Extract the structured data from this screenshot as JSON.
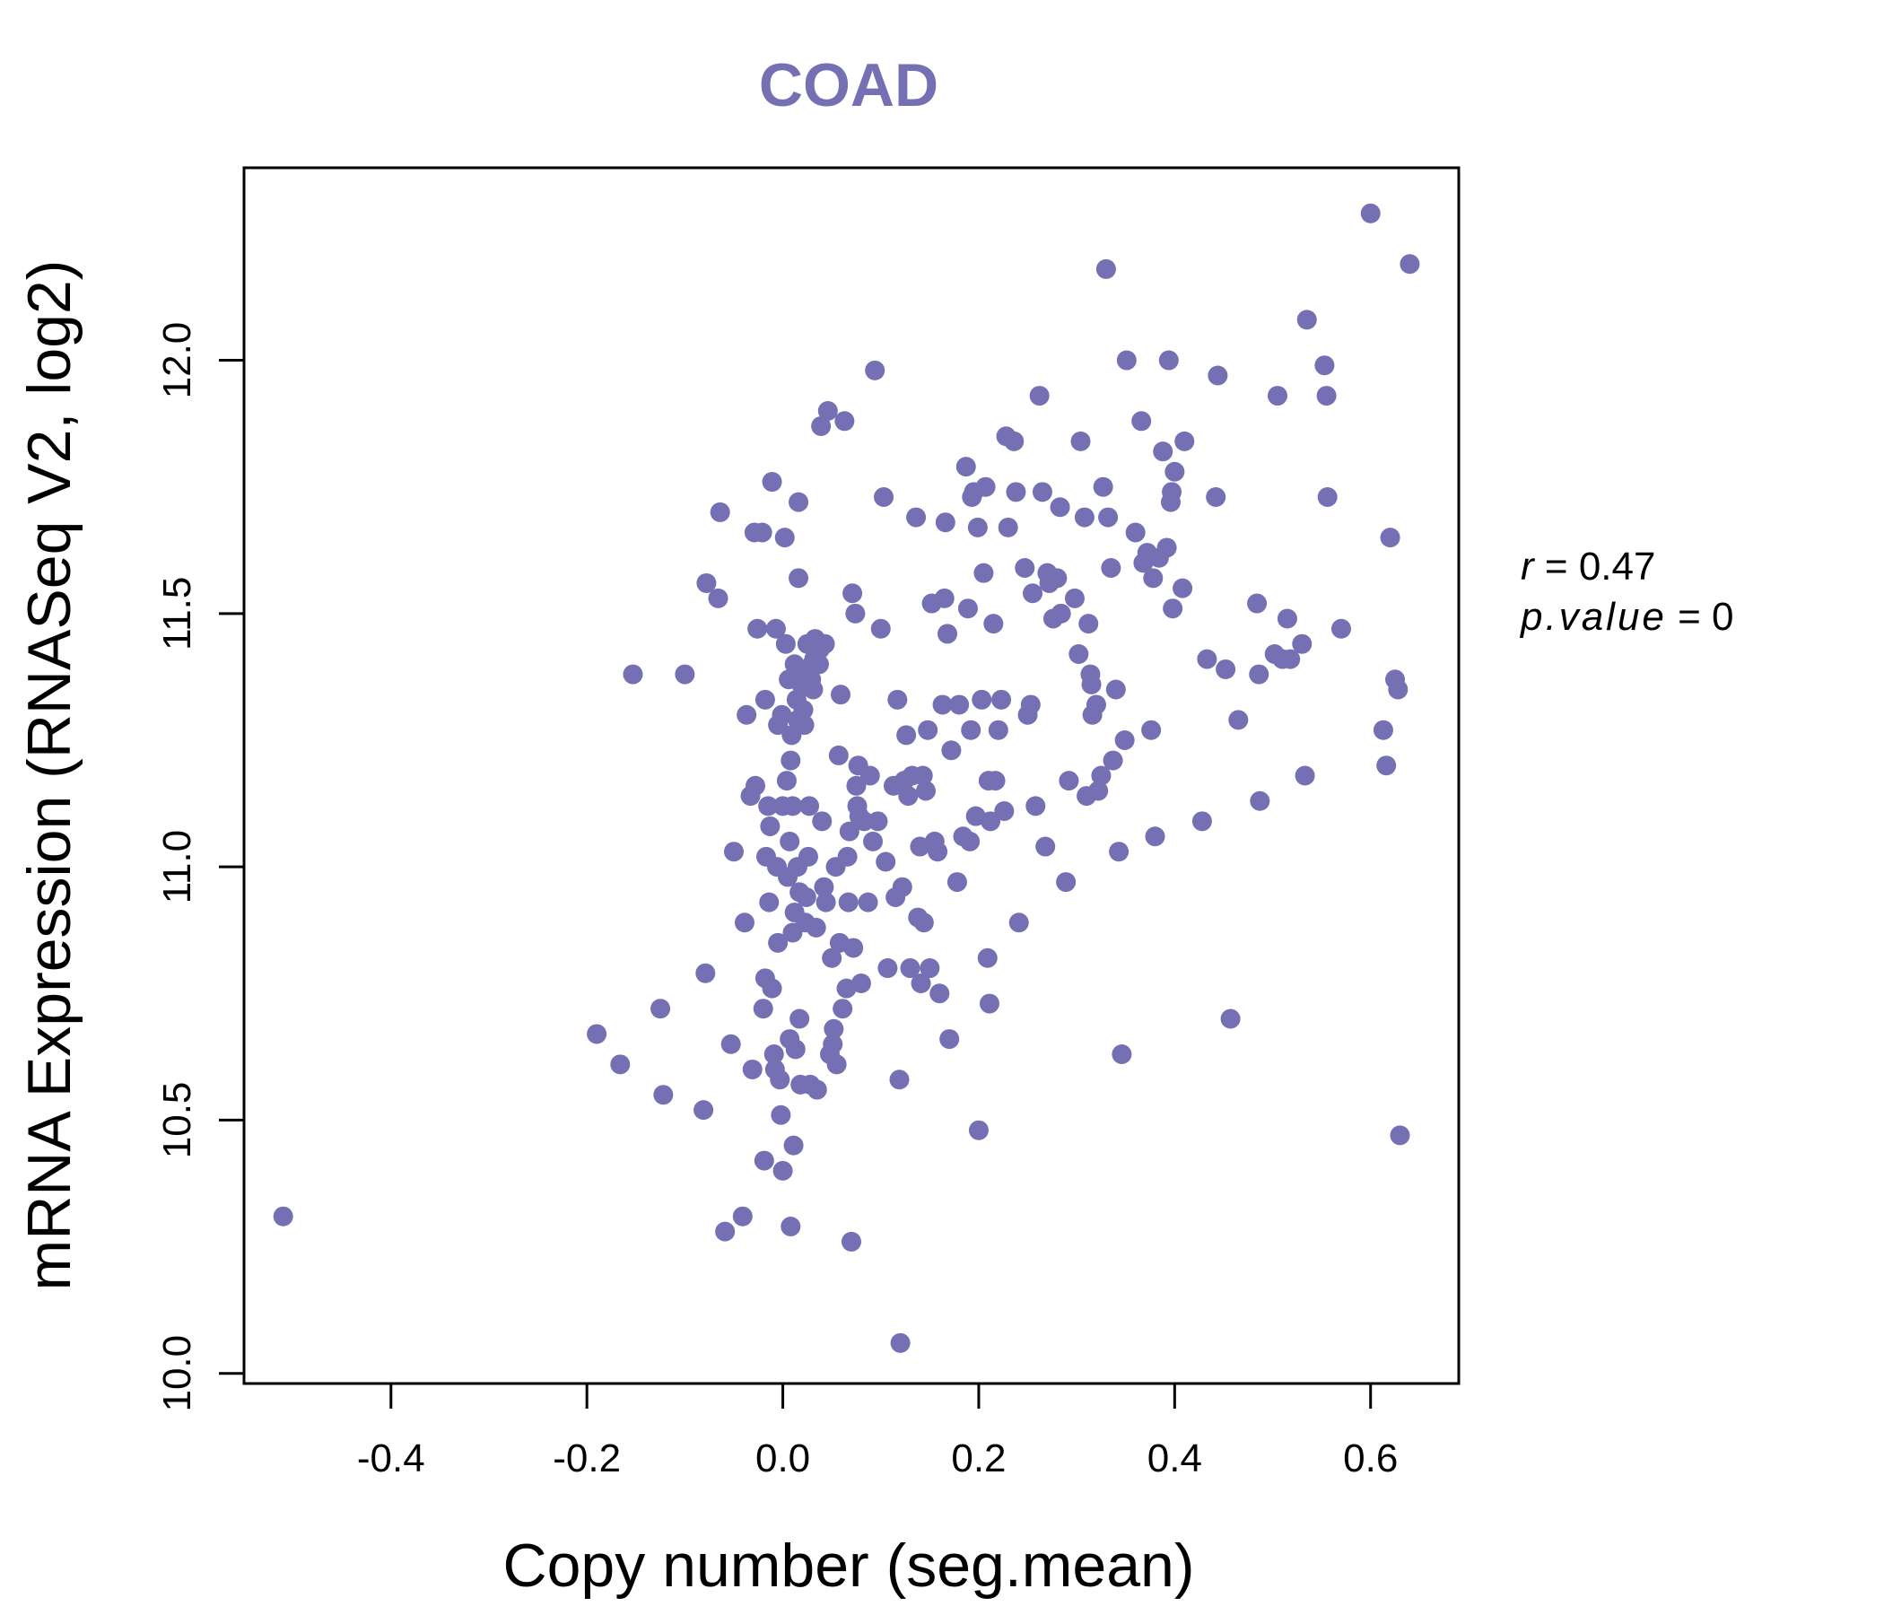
{
  "chart_data": {
    "type": "scatter",
    "title": "COAD",
    "xlabel": "Copy number (seg.mean)",
    "ylabel": "mRNA Expression (RNASeq V2, log2)",
    "xlim": [
      -0.55,
      0.69
    ],
    "ylim": [
      9.98,
      12.38
    ],
    "xticks": [
      -0.4,
      -0.2,
      0.0,
      0.2,
      0.4,
      0.6
    ],
    "xtick_labels": [
      "-0.4",
      "-0.2",
      "0.0",
      "0.2",
      "0.4",
      "0.6"
    ],
    "yticks": [
      10.0,
      10.5,
      11.0,
      11.5,
      12.0
    ],
    "ytick_labels": [
      "10.0",
      "10.5",
      "11.0",
      "11.5",
      "12.0"
    ],
    "color": "#7570b3",
    "annotation": {
      "r_label": "r",
      "r_value": "0.47",
      "p_label": "p.value",
      "p_value": "0"
    },
    "points": [
      [
        -0.51,
        10.31
      ],
      [
        -0.19,
        10.67
      ],
      [
        -0.166,
        10.61
      ],
      [
        -0.153,
        11.38
      ],
      [
        -0.125,
        10.72
      ],
      [
        -0.122,
        10.55
      ],
      [
        -0.1,
        11.38
      ],
      [
        -0.081,
        10.52
      ],
      [
        -0.079,
        10.79
      ],
      [
        -0.078,
        11.56
      ],
      [
        -0.066,
        11.53
      ],
      [
        -0.064,
        11.7
      ],
      [
        -0.059,
        10.28
      ],
      [
        -0.053,
        10.65
      ],
      [
        -0.05,
        11.03
      ],
      [
        -0.041,
        10.31
      ],
      [
        -0.039,
        10.89
      ],
      [
        -0.037,
        11.3
      ],
      [
        -0.033,
        11.14
      ],
      [
        -0.031,
        10.6
      ],
      [
        -0.029,
        11.66
      ],
      [
        -0.028,
        11.16
      ],
      [
        -0.026,
        11.47
      ],
      [
        -0.021,
        11.66
      ],
      [
        -0.02,
        10.72
      ],
      [
        -0.019,
        10.42
      ],
      [
        -0.018,
        11.33
      ],
      [
        -0.018,
        10.78
      ],
      [
        -0.017,
        11.02
      ],
      [
        -0.015,
        11.12
      ],
      [
        -0.014,
        10.93
      ],
      [
        -0.013,
        11.08
      ],
      [
        -0.011,
        10.76
      ],
      [
        -0.011,
        11.76
      ],
      [
        -0.009,
        10.63
      ],
      [
        -0.008,
        10.6
      ],
      [
        -0.007,
        11.47
      ],
      [
        -0.006,
        11.0
      ],
      [
        -0.005,
        10.85
      ],
      [
        -0.005,
        11.28
      ],
      [
        -0.003,
        10.58
      ],
      [
        -0.002,
        10.51
      ],
      [
        -0.001,
        11.3
      ],
      [
        0.0,
        10.4
      ],
      [
        0.0,
        11.12
      ],
      [
        0.002,
        11.65
      ],
      [
        0.003,
        11.44
      ],
      [
        0.004,
        11.17
      ],
      [
        0.005,
        10.98
      ],
      [
        0.006,
        11.37
      ],
      [
        0.007,
        10.66
      ],
      [
        0.007,
        11.05
      ],
      [
        0.008,
        10.29
      ],
      [
        0.008,
        11.21
      ],
      [
        0.009,
        11.26
      ],
      [
        0.01,
        10.87
      ],
      [
        0.01,
        11.12
      ],
      [
        0.011,
        10.45
      ],
      [
        0.012,
        10.91
      ],
      [
        0.012,
        11.4
      ],
      [
        0.013,
        10.64
      ],
      [
        0.014,
        11.33
      ],
      [
        0.015,
        11.0
      ],
      [
        0.015,
        11.29
      ],
      [
        0.016,
        11.72
      ],
      [
        0.016,
        11.57
      ],
      [
        0.017,
        10.7
      ],
      [
        0.017,
        10.95
      ],
      [
        0.018,
        10.57
      ],
      [
        0.019,
        11.36
      ],
      [
        0.02,
        11.38
      ],
      [
        0.021,
        11.31
      ],
      [
        0.022,
        11.28
      ],
      [
        0.023,
        10.89
      ],
      [
        0.024,
        10.94
      ],
      [
        0.025,
        11.44
      ],
      [
        0.026,
        11.02
      ],
      [
        0.027,
        11.12
      ],
      [
        0.028,
        10.57
      ],
      [
        0.029,
        11.37
      ],
      [
        0.03,
        11.4
      ],
      [
        0.031,
        11.35
      ],
      [
        0.032,
        11.41
      ],
      [
        0.033,
        11.45
      ],
      [
        0.034,
        10.88
      ],
      [
        0.035,
        10.56
      ],
      [
        0.037,
        11.4
      ],
      [
        0.038,
        11.43
      ],
      [
        0.039,
        11.87
      ],
      [
        0.04,
        11.09
      ],
      [
        0.042,
        10.96
      ],
      [
        0.043,
        11.44
      ],
      [
        0.044,
        10.93
      ],
      [
        0.046,
        11.9
      ],
      [
        0.048,
        10.63
      ],
      [
        0.05,
        10.82
      ],
      [
        0.051,
        10.65
      ],
      [
        0.052,
        10.68
      ],
      [
        0.054,
        11.0
      ],
      [
        0.055,
        10.61
      ],
      [
        0.057,
        11.22
      ],
      [
        0.058,
        10.85
      ],
      [
        0.059,
        11.34
      ],
      [
        0.061,
        10.72
      ],
      [
        0.063,
        11.88
      ],
      [
        0.065,
        10.76
      ],
      [
        0.066,
        11.02
      ],
      [
        0.067,
        10.93
      ],
      [
        0.068,
        11.07
      ],
      [
        0.07,
        10.26
      ],
      [
        0.071,
        11.54
      ],
      [
        0.072,
        10.84
      ],
      [
        0.074,
        11.5
      ],
      [
        0.075,
        11.16
      ],
      [
        0.076,
        11.12
      ],
      [
        0.077,
        11.2
      ],
      [
        0.078,
        11.1
      ],
      [
        0.08,
        10.77
      ],
      [
        0.083,
        11.09
      ],
      [
        0.087,
        10.93
      ],
      [
        0.089,
        11.18
      ],
      [
        0.092,
        11.05
      ],
      [
        0.094,
        11.98
      ],
      [
        0.097,
        11.09
      ],
      [
        0.1,
        11.47
      ],
      [
        0.103,
        11.73
      ],
      [
        0.105,
        11.01
      ],
      [
        0.107,
        10.8
      ],
      [
        0.113,
        11.16
      ],
      [
        0.115,
        10.94
      ],
      [
        0.117,
        11.33
      ],
      [
        0.119,
        10.58
      ],
      [
        0.12,
        10.06
      ],
      [
        0.122,
        10.96
      ],
      [
        0.124,
        11.17
      ],
      [
        0.126,
        11.26
      ],
      [
        0.128,
        11.14
      ],
      [
        0.13,
        10.8
      ],
      [
        0.132,
        11.18
      ],
      [
        0.136,
        11.69
      ],
      [
        0.138,
        10.9
      ],
      [
        0.14,
        11.04
      ],
      [
        0.141,
        10.77
      ],
      [
        0.143,
        11.18
      ],
      [
        0.144,
        10.89
      ],
      [
        0.146,
        11.15
      ],
      [
        0.148,
        11.27
      ],
      [
        0.15,
        10.8
      ],
      [
        0.152,
        11.52
      ],
      [
        0.155,
        11.05
      ],
      [
        0.158,
        11.03
      ],
      [
        0.16,
        10.75
      ],
      [
        0.163,
        11.32
      ],
      [
        0.165,
        11.53
      ],
      [
        0.166,
        11.68
      ],
      [
        0.168,
        11.46
      ],
      [
        0.17,
        10.66
      ],
      [
        0.172,
        11.23
      ],
      [
        0.178,
        10.97
      ],
      [
        0.18,
        11.32
      ],
      [
        0.184,
        11.06
      ],
      [
        0.187,
        11.79
      ],
      [
        0.189,
        11.51
      ],
      [
        0.191,
        11.05
      ],
      [
        0.192,
        11.27
      ],
      [
        0.193,
        11.73
      ],
      [
        0.195,
        11.74
      ],
      [
        0.197,
        11.1
      ],
      [
        0.199,
        11.67
      ],
      [
        0.2,
        10.48
      ],
      [
        0.203,
        11.33
      ],
      [
        0.205,
        11.58
      ],
      [
        0.207,
        11.75
      ],
      [
        0.209,
        10.82
      ],
      [
        0.21,
        11.17
      ],
      [
        0.211,
        10.73
      ],
      [
        0.212,
        11.09
      ],
      [
        0.215,
        11.48
      ],
      [
        0.217,
        11.17
      ],
      [
        0.22,
        11.27
      ],
      [
        0.223,
        11.33
      ],
      [
        0.226,
        11.11
      ],
      [
        0.228,
        11.85
      ],
      [
        0.23,
        11.67
      ],
      [
        0.236,
        11.84
      ],
      [
        0.238,
        11.74
      ],
      [
        0.241,
        10.89
      ],
      [
        0.247,
        11.59
      ],
      [
        0.25,
        11.3
      ],
      [
        0.253,
        11.32
      ],
      [
        0.255,
        11.54
      ],
      [
        0.258,
        11.12
      ],
      [
        0.262,
        11.93
      ],
      [
        0.265,
        11.74
      ],
      [
        0.268,
        11.04
      ],
      [
        0.27,
        11.58
      ],
      [
        0.272,
        11.56
      ],
      [
        0.276,
        11.49
      ],
      [
        0.28,
        11.57
      ],
      [
        0.283,
        11.71
      ],
      [
        0.284,
        11.5
      ],
      [
        0.289,
        10.97
      ],
      [
        0.292,
        11.17
      ],
      [
        0.298,
        11.53
      ],
      [
        0.302,
        11.42
      ],
      [
        0.304,
        11.84
      ],
      [
        0.308,
        11.69
      ],
      [
        0.31,
        11.14
      ],
      [
        0.312,
        11.48
      ],
      [
        0.314,
        11.38
      ],
      [
        0.315,
        11.36
      ],
      [
        0.316,
        11.3
      ],
      [
        0.32,
        11.32
      ],
      [
        0.322,
        11.15
      ],
      [
        0.325,
        11.18
      ],
      [
        0.327,
        11.75
      ],
      [
        0.33,
        12.18
      ],
      [
        0.332,
        11.69
      ],
      [
        0.335,
        11.59
      ],
      [
        0.337,
        11.21
      ],
      [
        0.34,
        11.35
      ],
      [
        0.343,
        11.03
      ],
      [
        0.346,
        10.63
      ],
      [
        0.349,
        11.25
      ],
      [
        0.351,
        12.0
      ],
      [
        0.36,
        11.66
      ],
      [
        0.366,
        11.88
      ],
      [
        0.368,
        11.6
      ],
      [
        0.372,
        11.62
      ],
      [
        0.376,
        11.27
      ],
      [
        0.378,
        11.57
      ],
      [
        0.38,
        11.06
      ],
      [
        0.384,
        11.61
      ],
      [
        0.388,
        11.82
      ],
      [
        0.392,
        11.63
      ],
      [
        0.394,
        12.0
      ],
      [
        0.396,
        11.72
      ],
      [
        0.397,
        11.74
      ],
      [
        0.398,
        11.51
      ],
      [
        0.4,
        11.78
      ],
      [
        0.408,
        11.55
      ],
      [
        0.41,
        11.84
      ],
      [
        0.428,
        11.09
      ],
      [
        0.433,
        11.41
      ],
      [
        0.442,
        11.73
      ],
      [
        0.444,
        11.97
      ],
      [
        0.452,
        11.39
      ],
      [
        0.457,
        10.7
      ],
      [
        0.465,
        11.29
      ],
      [
        0.484,
        11.52
      ],
      [
        0.486,
        11.38
      ],
      [
        0.487,
        11.13
      ],
      [
        0.502,
        11.42
      ],
      [
        0.505,
        11.93
      ],
      [
        0.51,
        11.41
      ],
      [
        0.515,
        11.49
      ],
      [
        0.518,
        11.41
      ],
      [
        0.53,
        11.44
      ],
      [
        0.533,
        11.18
      ],
      [
        0.535,
        12.08
      ],
      [
        0.553,
        11.99
      ],
      [
        0.555,
        11.93
      ],
      [
        0.556,
        11.73
      ],
      [
        0.57,
        11.47
      ],
      [
        0.6,
        12.29
      ],
      [
        0.613,
        11.27
      ],
      [
        0.616,
        11.2
      ],
      [
        0.62,
        11.65
      ],
      [
        0.625,
        11.37
      ],
      [
        0.628,
        11.35
      ],
      [
        0.63,
        10.47
      ],
      [
        0.64,
        12.19
      ]
    ]
  }
}
